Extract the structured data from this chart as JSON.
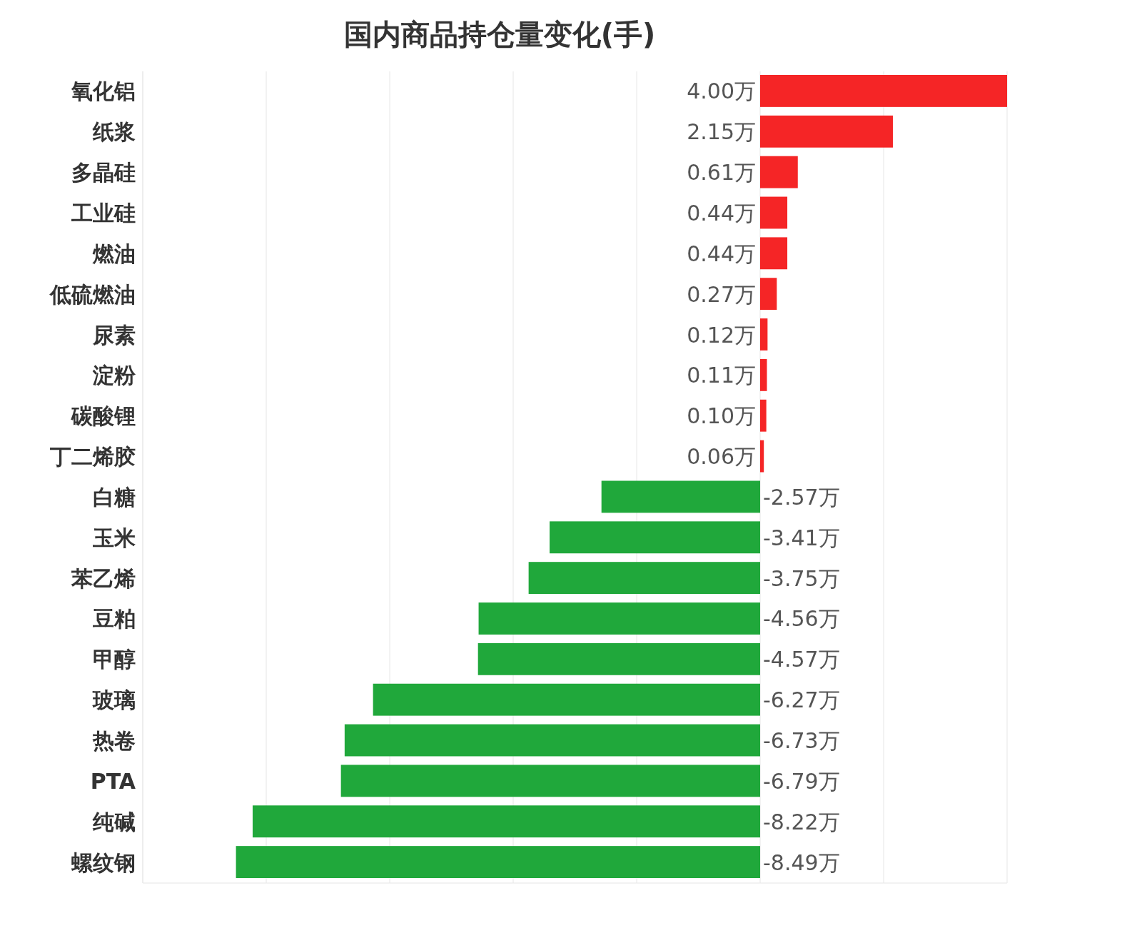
{
  "chart_data": {
    "type": "bar",
    "orientation": "horizontal",
    "title": "国内商品持仓量变化(手)",
    "categories": [
      "氧化铝",
      "纸浆",
      "多晶硅",
      "工业硅",
      "燃油",
      "低硫燃油",
      "尿素",
      "淀粉",
      "碳酸锂",
      "丁二烯胶",
      "白糖",
      "玉米",
      "苯乙烯",
      "豆粕",
      "甲醇",
      "玻璃",
      "热卷",
      "PTA",
      "纯碱",
      "螺纹钢"
    ],
    "values": [
      4.0,
      2.15,
      0.61,
      0.44,
      0.44,
      0.27,
      0.12,
      0.11,
      0.1,
      0.06,
      -2.57,
      -3.41,
      -3.75,
      -4.56,
      -4.57,
      -6.27,
      -6.73,
      -6.79,
      -8.22,
      -8.49
    ],
    "value_labels": [
      "4.00万",
      "2.15万",
      "0.61万",
      "0.44万",
      "0.44万",
      "0.27万",
      "0.12万",
      "0.11万",
      "0.10万",
      "0.06万",
      "-2.57万",
      "-3.41万",
      "-3.75万",
      "-4.56万",
      "-4.57万",
      "-6.27万",
      "-6.73万",
      "-6.79万",
      "-8.22万",
      "-8.49万"
    ],
    "colors": [
      "#f52526",
      "#f52526",
      "#f52526",
      "#f52526",
      "#f52526",
      "#f52526",
      "#f52526",
      "#f52526",
      "#f52526",
      "#f52526",
      "#20a83b",
      "#20a83b",
      "#20a83b",
      "#20a83b",
      "#20a83b",
      "#20a83b",
      "#20a83b",
      "#20a83b",
      "#20a83b",
      "#20a83b"
    ],
    "xlim": [
      -10,
      4
    ],
    "xticks": [
      {
        "value": -10,
        "label": null
      },
      {
        "value": -8,
        "label": null
      },
      {
        "value": -6,
        "label": null
      },
      {
        "value": -4,
        "label": null
      },
      {
        "value": -2,
        "label": null
      },
      {
        "value": 0,
        "label": null
      },
      {
        "value": 2,
        "label": null
      },
      {
        "value": 4,
        "label": null
      }
    ],
    "grid": "x",
    "tick_labels": "y"
  }
}
